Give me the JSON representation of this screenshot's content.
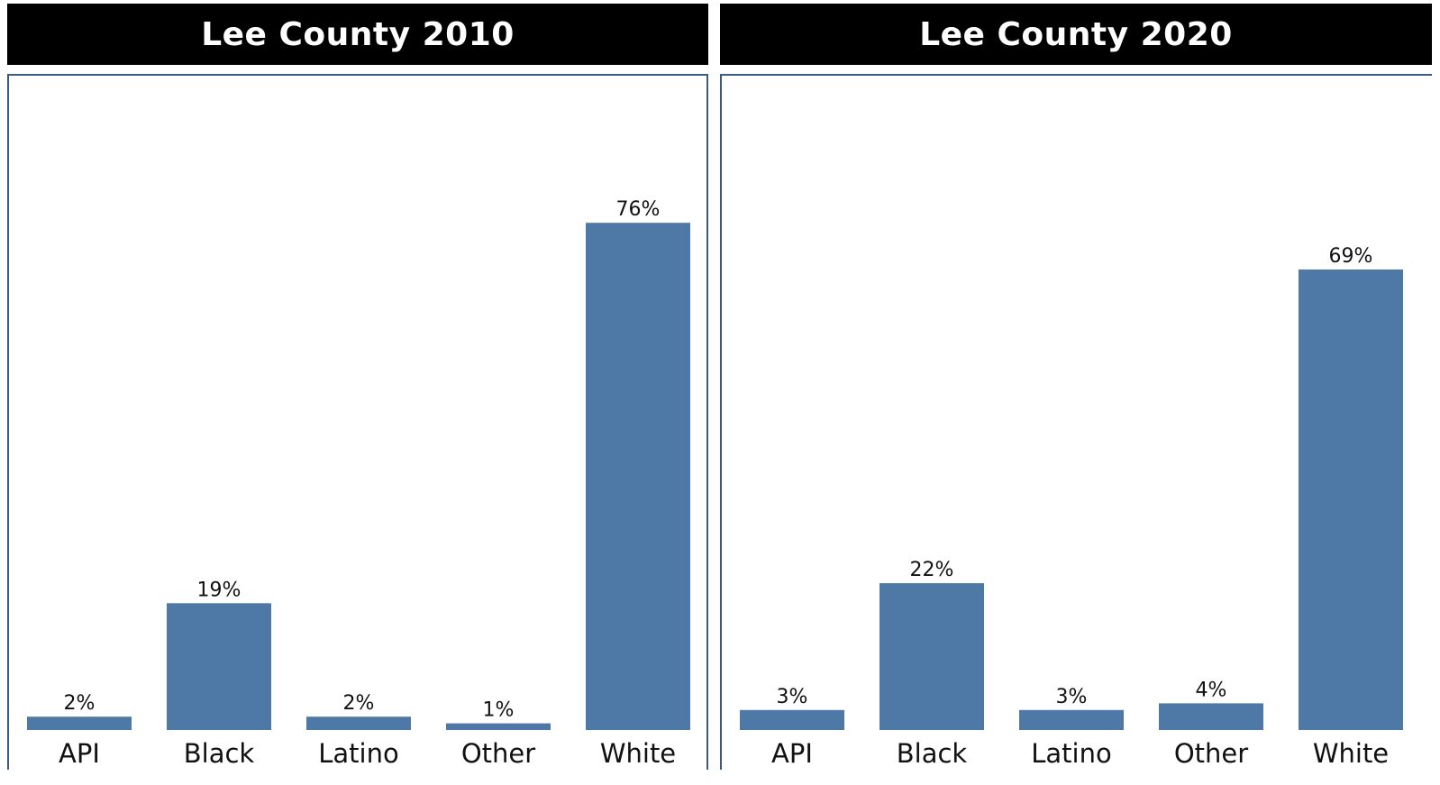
{
  "chart_data": [
    {
      "type": "bar",
      "title": "Lee County 2010",
      "categories": [
        "API",
        "Black",
        "Latino",
        "Other",
        "White"
      ],
      "values": [
        2,
        19,
        2,
        1,
        76
      ],
      "value_labels": [
        "2%",
        "19%",
        "2%",
        "1%",
        "76%"
      ],
      "ylim": [
        0,
        100
      ],
      "grid": false,
      "bar_color": "#4e79a7"
    },
    {
      "type": "bar",
      "title": "Lee County 2020",
      "categories": [
        "API",
        "Black",
        "Latino",
        "Other",
        "White"
      ],
      "values": [
        3,
        22,
        3,
        4,
        69
      ],
      "value_labels": [
        "3%",
        "22%",
        "3%",
        "4%",
        "69%"
      ],
      "ylim": [
        0,
        100
      ],
      "grid": false,
      "bar_color": "#4e79a7"
    }
  ]
}
